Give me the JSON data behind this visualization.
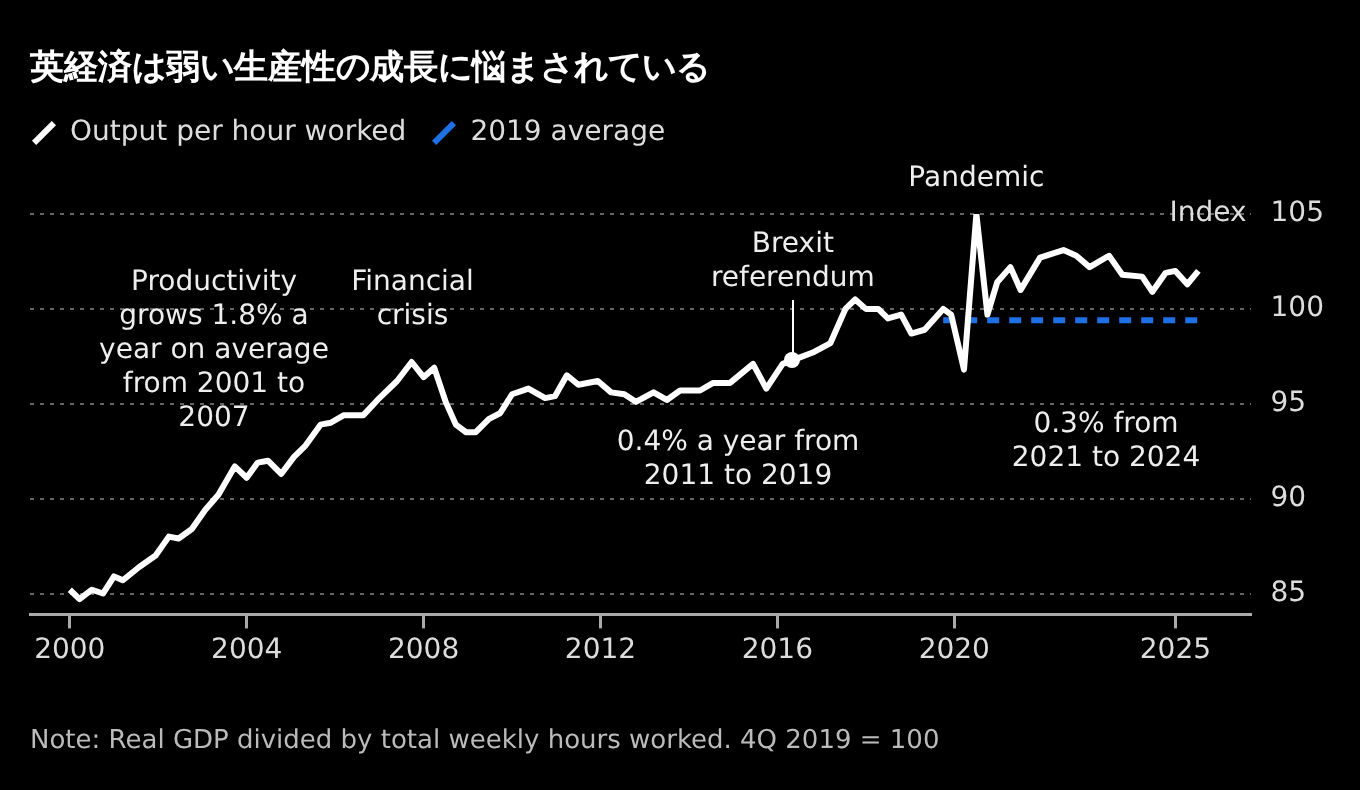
{
  "chart_data": {
    "type": "line",
    "title": "英経済は弱い生産性の成長に悩まされている",
    "ylabel": "Index",
    "xlim": [
      1999.1,
      2026.7
    ],
    "xticks": [
      2000,
      2004,
      2008,
      2012,
      2016,
      2020,
      2025
    ],
    "ylim": [
      83.9,
      105
    ],
    "yticks": [
      85,
      90,
      95,
      100,
      105
    ],
    "grid": "y",
    "legend": "top left",
    "series": [
      {
        "name": "Output per hour worked",
        "color": "#ffffff",
        "x": [
          2000.0,
          2000.22,
          2000.5,
          2000.75,
          2001.0,
          2001.2,
          2001.57,
          2001.94,
          2002.24,
          2002.46,
          2002.76,
          2003.06,
          2003.36,
          2003.73,
          2004.0,
          2004.25,
          2004.48,
          2004.78,
          2005.07,
          2005.33,
          2005.67,
          2005.9,
          2006.2,
          2006.64,
          2007.0,
          2007.4,
          2007.73,
          2008.0,
          2008.24,
          2008.5,
          2008.73,
          2008.96,
          2009.18,
          2009.48,
          2009.73,
          2010.0,
          2010.37,
          2010.75,
          2010.97,
          2011.24,
          2011.5,
          2011.94,
          2012.24,
          2012.54,
          2012.8,
          2013.2,
          2013.5,
          2013.8,
          2014.25,
          2014.55,
          2014.93,
          2015.45,
          2015.75,
          2016.12,
          2016.35,
          2016.8,
          2017.2,
          2017.54,
          2017.76,
          2018.0,
          2018.28,
          2018.5,
          2018.8,
          2019.03,
          2019.33,
          2019.75,
          2019.93,
          2020.22,
          2020.5,
          2020.75,
          2020.97,
          2021.27,
          2021.5,
          2021.94,
          2022.47,
          2022.76,
          2023.06,
          2023.5,
          2023.8,
          2024.25,
          2024.48,
          2024.78,
          2025.0,
          2025.27,
          2025.52
        ],
        "values": [
          85.2,
          84.7,
          85.2,
          85.0,
          85.9,
          85.7,
          86.4,
          87.0,
          88.0,
          87.9,
          88.4,
          89.4,
          90.2,
          91.7,
          91.1,
          91.9,
          92.0,
          91.3,
          92.2,
          92.8,
          93.9,
          94.0,
          94.4,
          94.4,
          95.3,
          96.2,
          97.2,
          96.4,
          96.9,
          95.1,
          93.9,
          93.5,
          93.5,
          94.2,
          94.5,
          95.5,
          95.8,
          95.3,
          95.4,
          96.5,
          96.0,
          96.2,
          95.6,
          95.5,
          95.1,
          95.6,
          95.2,
          95.7,
          95.7,
          96.1,
          96.1,
          97.1,
          95.8,
          97.1,
          97.3,
          97.7,
          98.2,
          100.0,
          100.5,
          100.0,
          100.0,
          99.5,
          99.7,
          98.7,
          98.9,
          100.0,
          99.7,
          96.8,
          105,
          99.7,
          101.4,
          102.2,
          101.0,
          102.7,
          103.1,
          102.8,
          102.2,
          102.8,
          101.8,
          101.7,
          100.9,
          101.9,
          102.0,
          101.3,
          102.0
        ]
      },
      {
        "name": "2019 average",
        "color": "#1f6fe5",
        "line_style": "dashed",
        "x": [
          2019.75,
          2025.5
        ],
        "values": [
          99.4,
          99.4
        ]
      }
    ],
    "annotations": [
      "Productivity grows 1.8% a year on average from 2001 to 2007",
      {
        "text": "Financial crisis",
        "x": 2007.75,
        "y": 97.2
      },
      {
        "text": "Brexit referendum",
        "x": 2016.35,
        "y": 97.3
      },
      {
        "text": "Pandemic",
        "x": 2020.5,
        "y": 105
      },
      "0.4% a year from 2011 to 2019",
      "0.3% from 2021 to 2024",
      "Note: Real GDP divided by total weekly hours worked. 4Q 2019 = 100"
    ]
  }
}
